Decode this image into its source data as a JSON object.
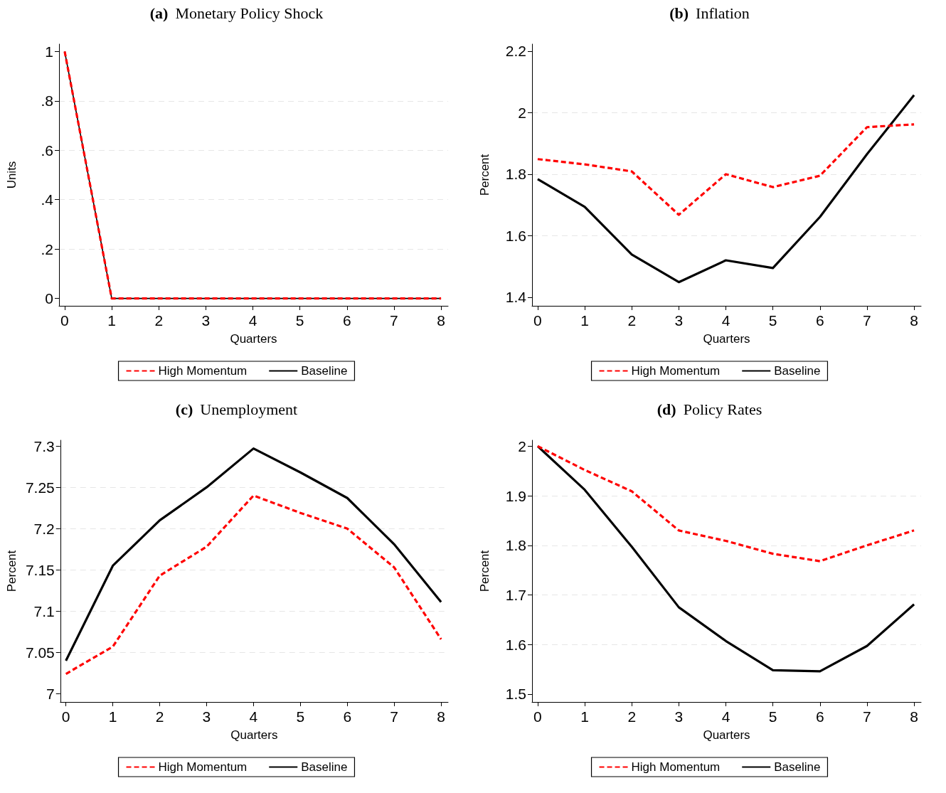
{
  "chart_data": [
    {
      "type": "line",
      "title": "(a) Monetary Policy Shock",
      "xlabel": "Quarters",
      "ylabel": "Units",
      "x": [
        0,
        1,
        2,
        3,
        4,
        5,
        6,
        7,
        8
      ],
      "xlim": [
        -0.12,
        8.15
      ],
      "xticks": [
        0,
        1,
        2,
        3,
        4,
        5,
        6,
        7,
        8
      ],
      "ylim": [
        -0.03,
        1.03
      ],
      "yticks": [
        0,
        {
          "value": 0.2,
          "label": ".2"
        },
        {
          "value": 0.4,
          "label": ".4"
        },
        {
          "value": 0.6,
          "label": ".6"
        },
        {
          "value": 0.8,
          "label": ".8"
        },
        1
      ],
      "grid": "y",
      "legend": "bottom",
      "marker": "none",
      "series": [
        {
          "name": "High Momentum",
          "color": "#ff0000",
          "line_style": "dashed",
          "values": [
            1,
            0,
            0,
            0,
            0,
            0,
            0,
            0,
            0
          ]
        },
        {
          "name": "Baseline",
          "color": "#000000",
          "line_style": "solid",
          "values": [
            1,
            0,
            0,
            0,
            0,
            0,
            0,
            0,
            0
          ]
        }
      ]
    },
    {
      "type": "line",
      "title": "(b) Inflation",
      "xlabel": "Quarters",
      "ylabel": "Percent",
      "x": [
        0,
        1,
        2,
        3,
        4,
        5,
        6,
        7,
        8
      ],
      "xlim": [
        -0.12,
        8.15
      ],
      "xticks": [
        0,
        1,
        2,
        3,
        4,
        5,
        6,
        7,
        8
      ],
      "ylim": [
        1.372,
        2.223
      ],
      "yticks": [
        1.4,
        1.6,
        1.8,
        2,
        2.2
      ],
      "grid": "y",
      "legend": "bottom",
      "marker": "none",
      "series": [
        {
          "name": "High Momentum",
          "color": "#ff0000",
          "line_style": "dashed",
          "values": [
            1.849,
            1.832,
            1.809,
            1.668,
            1.8,
            1.758,
            1.795,
            1.953,
            1.962
          ]
        },
        {
          "name": "Baseline",
          "color": "#000000",
          "line_style": "solid",
          "values": [
            1.784,
            1.694,
            1.539,
            1.449,
            1.52,
            1.495,
            1.661,
            1.865,
            2.057
          ]
        }
      ]
    },
    {
      "type": "line",
      "title": "(c) Unemployment",
      "xlabel": "Quarters",
      "ylabel": "Percent",
      "x": [
        0,
        1,
        2,
        3,
        4,
        5,
        6,
        7,
        8
      ],
      "xlim": [
        -0.12,
        8.15
      ],
      "xticks": [
        0,
        1,
        2,
        3,
        4,
        5,
        6,
        7,
        8
      ],
      "ylim": [
        6.99,
        7.307
      ],
      "yticks": [
        7,
        7.05,
        7.1,
        7.15,
        7.2,
        7.25,
        7.3
      ],
      "grid": "y",
      "legend": "bottom",
      "marker": "none",
      "series": [
        {
          "name": "High Momentum",
          "color": "#ff0000",
          "line_style": "dashed",
          "values": [
            7.024,
            7.057,
            7.143,
            7.178,
            7.24,
            7.219,
            7.2,
            7.153,
            7.066
          ]
        },
        {
          "name": "Baseline",
          "color": "#000000",
          "line_style": "solid",
          "values": [
            7.04,
            7.155,
            7.21,
            7.25,
            7.297,
            7.268,
            7.237,
            7.181,
            7.111
          ]
        }
      ]
    },
    {
      "type": "line",
      "title": "(d) Policy Rates",
      "xlabel": "Quarters",
      "ylabel": "Percent",
      "x": [
        0,
        1,
        2,
        3,
        4,
        5,
        6,
        7,
        8
      ],
      "xlim": [
        -0.12,
        8.15
      ],
      "xticks": [
        0,
        1,
        2,
        3,
        4,
        5,
        6,
        7,
        8
      ],
      "ylim": [
        1.484,
        2.012
      ],
      "yticks": [
        1.5,
        1.6,
        1.7,
        1.8,
        1.9,
        2
      ],
      "grid": "y",
      "legend": "bottom",
      "marker": "none",
      "series": [
        {
          "name": "High Momentum",
          "color": "#ff0000",
          "line_style": "dashed",
          "values": [
            2,
            1.952,
            1.909,
            1.83,
            1.809,
            1.783,
            1.768,
            1.8,
            1.83
          ]
        },
        {
          "name": "Baseline",
          "color": "#000000",
          "line_style": "solid",
          "values": [
            2,
            1.912,
            1.797,
            1.675,
            1.607,
            1.548,
            1.546,
            1.597,
            1.681
          ]
        }
      ]
    }
  ]
}
